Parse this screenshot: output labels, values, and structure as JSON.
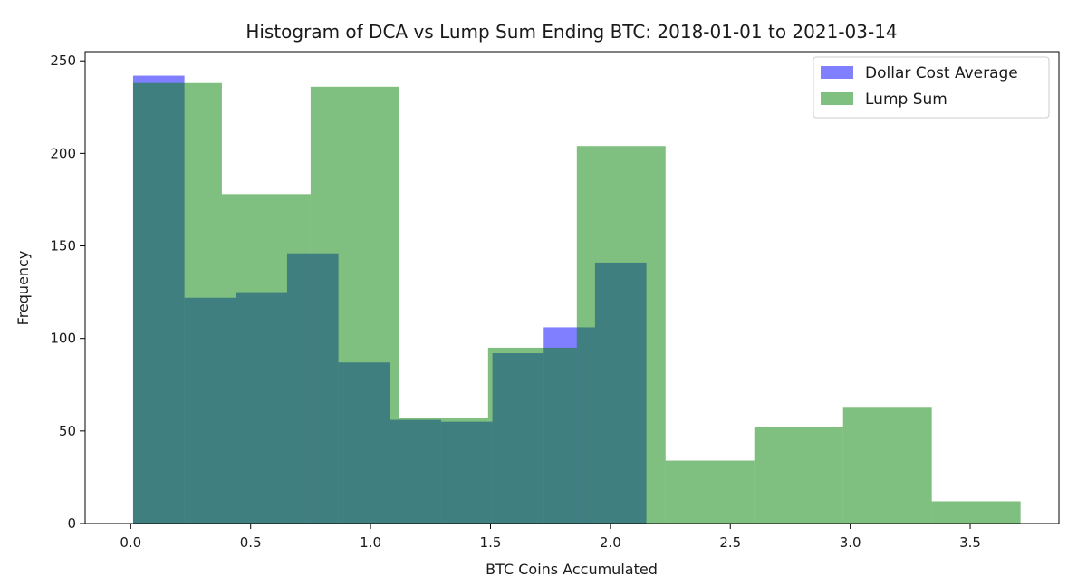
{
  "chart_data": {
    "type": "histogram",
    "title": "Histogram of DCA vs Lump Sum Ending BTC: 2018-01-01 to 2021-03-14",
    "xlabel": "BTC Coins Accumulated",
    "ylabel": "Frequency",
    "xlim": [
      -0.19,
      3.87
    ],
    "ylim": [
      0,
      255
    ],
    "x_ticks": [
      0.0,
      0.5,
      1.0,
      1.5,
      2.0,
      2.5,
      3.0,
      3.5
    ],
    "x_tick_labels": [
      "0.0",
      "0.5",
      "1.0",
      "1.5",
      "2.0",
      "2.5",
      "3.0",
      "3.5"
    ],
    "y_ticks": [
      0,
      50,
      100,
      150,
      200,
      250
    ],
    "y_tick_labels": [
      "0",
      "50",
      "100",
      "150",
      "200",
      "250"
    ],
    "legend_position": "top-right",
    "series": [
      {
        "name": "Dollar Cost Average",
        "color": "#0000ff",
        "alpha": 0.5,
        "bin_edges": [
          0.01,
          0.224,
          0.438,
          0.652,
          0.866,
          1.08,
          1.294,
          1.508,
          1.722,
          1.936,
          2.15
        ],
        "counts": [
          242,
          122,
          125,
          146,
          87,
          56,
          55,
          92,
          106,
          141
        ]
      },
      {
        "name": "Lump Sum",
        "color": "#008000",
        "alpha": 0.5,
        "bin_edges": [
          0.01,
          0.38,
          0.75,
          1.12,
          1.49,
          1.86,
          2.23,
          2.6,
          2.97,
          3.34,
          3.71
        ],
        "counts": [
          238,
          178,
          236,
          57,
          95,
          204,
          34,
          52,
          63,
          12
        ]
      }
    ]
  }
}
